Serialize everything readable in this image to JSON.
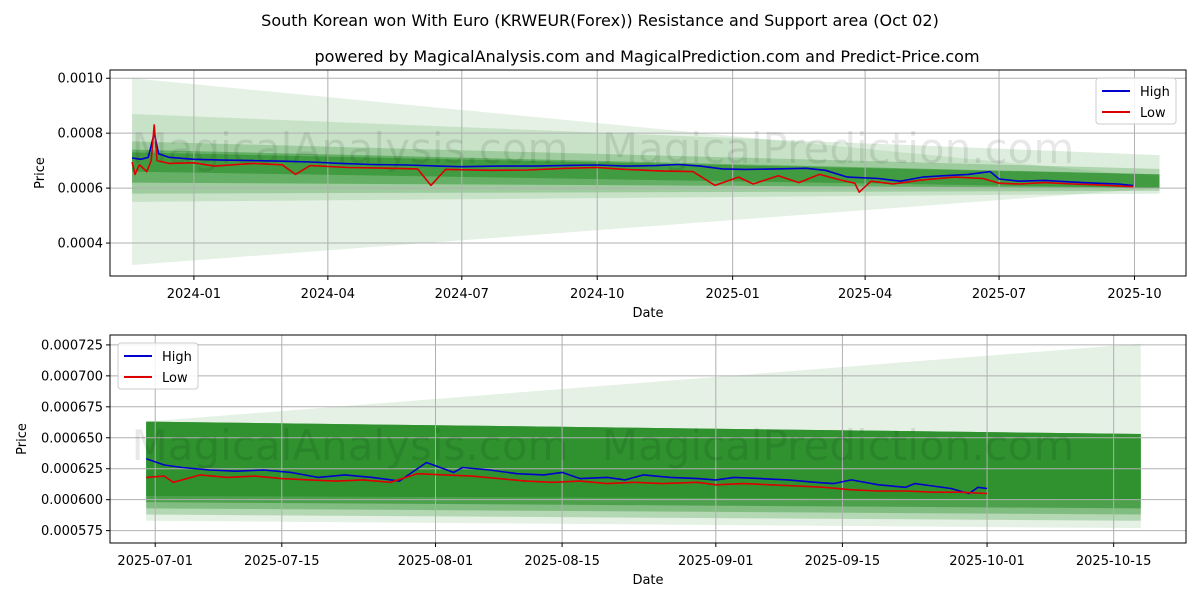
{
  "figure": {
    "title": "South Korean won With Euro (KRWEUR(Forex)) Resistance and Support area (Oct 02)",
    "subtitle": "powered by MagicalAnalysis.com and MagicalPrediction.com and Predict-Price.com",
    "watermarks": [
      "MagicalAnalysis.com",
      "MagicalPrediction.com"
    ]
  },
  "colors": {
    "high": "#0000cc",
    "low": "#dd0000",
    "band_dark": "#228b22",
    "band_light": "#2e9e2e",
    "grid": "#b0b0b0"
  },
  "chart_data": [
    {
      "type": "line",
      "xlabel": "Date",
      "ylabel": "Price",
      "legend_position": "top-right",
      "legend": [
        "High",
        "Low"
      ],
      "x_range": [
        "2023-11-05",
        "2025-11-05"
      ],
      "ylim": [
        0.00028,
        0.00103
      ],
      "x_ticks": [
        {
          "date": "2024-01-01",
          "label": "2024-01"
        },
        {
          "date": "2024-04-01",
          "label": "2024-04"
        },
        {
          "date": "2024-07-01",
          "label": "2024-07"
        },
        {
          "date": "2024-10-01",
          "label": "2024-10"
        },
        {
          "date": "2025-01-01",
          "label": "2025-01"
        },
        {
          "date": "2025-04-01",
          "label": "2025-04"
        },
        {
          "date": "2025-07-01",
          "label": "2025-07"
        },
        {
          "date": "2025-10-01",
          "label": "2025-10"
        }
      ],
      "y_ticks": [
        {
          "value": 0.0004,
          "label": "0.0004"
        },
        {
          "value": 0.0006,
          "label": "0.0006"
        },
        {
          "value": 0.0008,
          "label": "0.0008"
        },
        {
          "value": 0.001,
          "label": "0.0010"
        }
      ],
      "band_range": {
        "start": "2023-11-20",
        "end": "2025-10-18"
      },
      "bands": [
        {
          "start": [
            0.00032,
            0.001
          ],
          "end": [
            0.0006,
            0.00064
          ],
          "opacity": 0.12
        },
        {
          "start": [
            0.00055,
            0.00087
          ],
          "end": [
            0.00058,
            0.00072
          ],
          "opacity": 0.15
        },
        {
          "start": [
            0.00058,
            0.00077
          ],
          "end": [
            0.00059,
            0.00067
          ],
          "opacity": 0.25
        },
        {
          "start": [
            0.00062,
            0.00074
          ],
          "end": [
            0.0006,
            0.00065
          ],
          "opacity": 0.45
        },
        {
          "start": [
            0.00066,
            0.00073
          ],
          "end": [
            0.0006,
            0.00065
          ],
          "opacity": 0.55
        }
      ],
      "series": [
        {
          "name": "High",
          "points": [
            [
              "2023-11-20",
              0.00071
            ],
            [
              "2023-11-26",
              0.000705
            ],
            [
              "2023-12-01",
              0.000712
            ],
            [
              "2023-12-05",
              0.0008
            ],
            [
              "2023-12-08",
              0.000725
            ],
            [
              "2023-12-15",
              0.000712
            ],
            [
              "2024-01-01",
              0.000705
            ],
            [
              "2024-01-20",
              0.000702
            ],
            [
              "2024-02-10",
              0.0007
            ],
            [
              "2024-03-01",
              0.000698
            ],
            [
              "2024-03-20",
              0.000695
            ],
            [
              "2024-04-10",
              0.00069
            ],
            [
              "2024-05-01",
              0.000686
            ],
            [
              "2024-05-25",
              0.000684
            ],
            [
              "2024-06-15",
              0.00068
            ],
            [
              "2024-07-01",
              0.000678
            ],
            [
              "2024-07-25",
              0.00068
            ],
            [
              "2024-08-20",
              0.00068
            ],
            [
              "2024-09-15",
              0.000683
            ],
            [
              "2024-10-01",
              0.000684
            ],
            [
              "2024-10-20",
              0.00068
            ],
            [
              "2024-11-10",
              0.000682
            ],
            [
              "2024-11-25",
              0.000686
            ],
            [
              "2024-12-10",
              0.00068
            ],
            [
              "2024-12-25",
              0.00067
            ],
            [
              "2025-01-10",
              0.000668
            ],
            [
              "2025-02-01",
              0.00067
            ],
            [
              "2025-02-20",
              0.000672
            ],
            [
              "2025-03-05",
              0.000665
            ],
            [
              "2025-03-20",
              0.00064
            ],
            [
              "2025-04-10",
              0.000635
            ],
            [
              "2025-04-25",
              0.000625
            ],
            [
              "2025-05-10",
              0.00064
            ],
            [
              "2025-05-25",
              0.000645
            ],
            [
              "2025-06-10",
              0.00065
            ],
            [
              "2025-06-25",
              0.00066
            ],
            [
              "2025-07-01",
              0.000633
            ],
            [
              "2025-07-15",
              0.000625
            ],
            [
              "2025-08-01",
              0.000628
            ],
            [
              "2025-08-20",
              0.000622
            ],
            [
              "2025-09-05",
              0.000618
            ],
            [
              "2025-09-20",
              0.000615
            ],
            [
              "2025-09-30",
              0.000609
            ]
          ]
        },
        {
          "name": "Low",
          "points": [
            [
              "2023-11-20",
              0.000695
            ],
            [
              "2023-11-22",
              0.00065
            ],
            [
              "2023-11-25",
              0.000685
            ],
            [
              "2023-11-30",
              0.00066
            ],
            [
              "2023-12-03",
              0.0007
            ],
            [
              "2023-12-05",
              0.00083
            ],
            [
              "2023-12-07",
              0.0007
            ],
            [
              "2023-12-15",
              0.00069
            ],
            [
              "2024-01-01",
              0.000692
            ],
            [
              "2024-01-15",
              0.00068
            ],
            [
              "2024-02-10",
              0.00069
            ],
            [
              "2024-03-01",
              0.000685
            ],
            [
              "2024-03-10",
              0.00065
            ],
            [
              "2024-03-20",
              0.000682
            ],
            [
              "2024-04-15",
              0.000675
            ],
            [
              "2024-05-15",
              0.000672
            ],
            [
              "2024-06-01",
              0.00067
            ],
            [
              "2024-06-10",
              0.00061
            ],
            [
              "2024-06-20",
              0.000668
            ],
            [
              "2024-07-20",
              0.000665
            ],
            [
              "2024-08-15",
              0.000666
            ],
            [
              "2024-09-10",
              0.000672
            ],
            [
              "2024-10-01",
              0.000675
            ],
            [
              "2024-10-20",
              0.000668
            ],
            [
              "2024-11-15",
              0.000662
            ],
            [
              "2024-12-05",
              0.00066
            ],
            [
              "2024-12-20",
              0.00061
            ],
            [
              "2025-01-05",
              0.00064
            ],
            [
              "2025-01-15",
              0.000615
            ],
            [
              "2025-02-01",
              0.000645
            ],
            [
              "2025-02-15",
              0.00062
            ],
            [
              "2025-03-01",
              0.00065
            ],
            [
              "2025-03-15",
              0.00063
            ],
            [
              "2025-03-25",
              0.000618
            ],
            [
              "2025-03-28",
              0.000585
            ],
            [
              "2025-04-05",
              0.000625
            ],
            [
              "2025-04-20",
              0.000615
            ],
            [
              "2025-05-10",
              0.00063
            ],
            [
              "2025-06-01",
              0.00064
            ],
            [
              "2025-06-20",
              0.000635
            ],
            [
              "2025-07-01",
              0.000618
            ],
            [
              "2025-07-15",
              0.000615
            ],
            [
              "2025-08-01",
              0.00062
            ],
            [
              "2025-08-20",
              0.000615
            ],
            [
              "2025-09-05",
              0.000612
            ],
            [
              "2025-09-20",
              0.000608
            ],
            [
              "2025-09-30",
              0.000605
            ]
          ]
        }
      ]
    },
    {
      "type": "line",
      "xlabel": "Date",
      "ylabel": "Price",
      "legend_position": "top-left",
      "legend": [
        "High",
        "Low"
      ],
      "x_range": [
        "2025-06-26",
        "2025-10-23"
      ],
      "ylim": [
        0.000565,
        0.000733
      ],
      "x_ticks": [
        {
          "date": "2025-07-01",
          "label": "2025-07-01"
        },
        {
          "date": "2025-07-15",
          "label": "2025-07-15"
        },
        {
          "date": "2025-08-01",
          "label": "2025-08-01"
        },
        {
          "date": "2025-08-15",
          "label": "2025-08-15"
        },
        {
          "date": "2025-09-01",
          "label": "2025-09-01"
        },
        {
          "date": "2025-09-15",
          "label": "2025-09-15"
        },
        {
          "date": "2025-10-01",
          "label": "2025-10-01"
        },
        {
          "date": "2025-10-15",
          "label": "2025-10-15"
        }
      ],
      "y_ticks": [
        {
          "value": 0.000575,
          "label": "0.000575"
        },
        {
          "value": 0.0006,
          "label": "0.000600"
        },
        {
          "value": 0.000625,
          "label": "0.000625"
        },
        {
          "value": 0.00065,
          "label": "0.000650"
        },
        {
          "value": 0.000675,
          "label": "0.000675"
        },
        {
          "value": 0.0007,
          "label": "0.000700"
        },
        {
          "value": 0.000725,
          "label": "0.000725"
        }
      ],
      "band_range": {
        "start": "2025-06-30",
        "end": "2025-10-18"
      },
      "bands": [
        {
          "start": [
            0.000583,
            0.000663
          ],
          "end": [
            0.000577,
            0.000726
          ],
          "opacity": 0.12
        },
        {
          "start": [
            0.000588,
            0.000663
          ],
          "end": [
            0.000583,
            0.000653
          ],
          "opacity": 0.25
        },
        {
          "start": [
            0.000593,
            0.000663
          ],
          "end": [
            0.000588,
            0.000653
          ],
          "opacity": 0.35
        },
        {
          "start": [
            0.000598,
            0.000663
          ],
          "end": [
            0.000593,
            0.000653
          ],
          "opacity": 0.55
        },
        {
          "start": [
            0.000603,
            0.000663
          ],
          "end": [
            0.0006,
            0.000653
          ],
          "opacity": 0.7
        }
      ],
      "series": [
        {
          "name": "High",
          "points": [
            [
              "2025-06-30",
              0.000633
            ],
            [
              "2025-07-02",
              0.000628
            ],
            [
              "2025-07-04",
              0.000626
            ],
            [
              "2025-07-07",
              0.000624
            ],
            [
              "2025-07-10",
              0.000623
            ],
            [
              "2025-07-13",
              0.000624
            ],
            [
              "2025-07-16",
              0.000622
            ],
            [
              "2025-07-19",
              0.000618
            ],
            [
              "2025-07-22",
              0.00062
            ],
            [
              "2025-07-25",
              0.000618
            ],
            [
              "2025-07-28",
              0.000615
            ],
            [
              "2025-07-31",
              0.00063
            ],
            [
              "2025-08-03",
              0.000622
            ],
            [
              "2025-08-04",
              0.000626
            ],
            [
              "2025-08-07",
              0.000624
            ],
            [
              "2025-08-10",
              0.000621
            ],
            [
              "2025-08-13",
              0.00062
            ],
            [
              "2025-08-15",
              0.000622
            ],
            [
              "2025-08-17",
              0.000617
            ],
            [
              "2025-08-20",
              0.000618
            ],
            [
              "2025-08-22",
              0.000616
            ],
            [
              "2025-08-24",
              0.00062
            ],
            [
              "2025-08-27",
              0.000618
            ],
            [
              "2025-08-30",
              0.000617
            ],
            [
              "2025-09-01",
              0.000616
            ],
            [
              "2025-09-03",
              0.000618
            ],
            [
              "2025-09-06",
              0.000617
            ],
            [
              "2025-09-09",
              0.000616
            ],
            [
              "2025-09-12",
              0.000614
            ],
            [
              "2025-09-14",
              0.000613
            ],
            [
              "2025-09-16",
              0.000616
            ],
            [
              "2025-09-19",
              0.000612
            ],
            [
              "2025-09-22",
              0.00061
            ],
            [
              "2025-09-23",
              0.000613
            ],
            [
              "2025-09-25",
              0.000611
            ],
            [
              "2025-09-27",
              0.000609
            ],
            [
              "2025-09-29",
              0.000605
            ],
            [
              "2025-09-30",
              0.00061
            ],
            [
              "2025-10-01",
              0.000609
            ]
          ]
        },
        {
          "name": "Low",
          "points": [
            [
              "2025-06-30",
              0.000618
            ],
            [
              "2025-07-02",
              0.000619
            ],
            [
              "2025-07-03",
              0.000614
            ],
            [
              "2025-07-06",
              0.00062
            ],
            [
              "2025-07-09",
              0.000618
            ],
            [
              "2025-07-12",
              0.000619
            ],
            [
              "2025-07-15",
              0.000617
            ],
            [
              "2025-07-18",
              0.000616
            ],
            [
              "2025-07-21",
              0.000615
            ],
            [
              "2025-07-24",
              0.000616
            ],
            [
              "2025-07-27",
              0.000614
            ],
            [
              "2025-07-30",
              0.000621
            ],
            [
              "2025-08-02",
              0.00062
            ],
            [
              "2025-08-05",
              0.000619
            ],
            [
              "2025-08-08",
              0.000617
            ],
            [
              "2025-08-11",
              0.000615
            ],
            [
              "2025-08-14",
              0.000614
            ],
            [
              "2025-08-17",
              0.000615
            ],
            [
              "2025-08-20",
              0.000613
            ],
            [
              "2025-08-23",
              0.000614
            ],
            [
              "2025-08-26",
              0.000613
            ],
            [
              "2025-08-30",
              0.000614
            ],
            [
              "2025-09-01",
              0.000612
            ],
            [
              "2025-09-04",
              0.000613
            ],
            [
              "2025-09-07",
              0.000612
            ],
            [
              "2025-09-10",
              0.000611
            ],
            [
              "2025-09-13",
              0.00061
            ],
            [
              "2025-09-16",
              0.000608
            ],
            [
              "2025-09-19",
              0.000607
            ],
            [
              "2025-09-22",
              0.000607
            ],
            [
              "2025-09-25",
              0.000606
            ],
            [
              "2025-09-28",
              0.000606
            ],
            [
              "2025-10-01",
              0.000605
            ]
          ]
        }
      ]
    }
  ]
}
